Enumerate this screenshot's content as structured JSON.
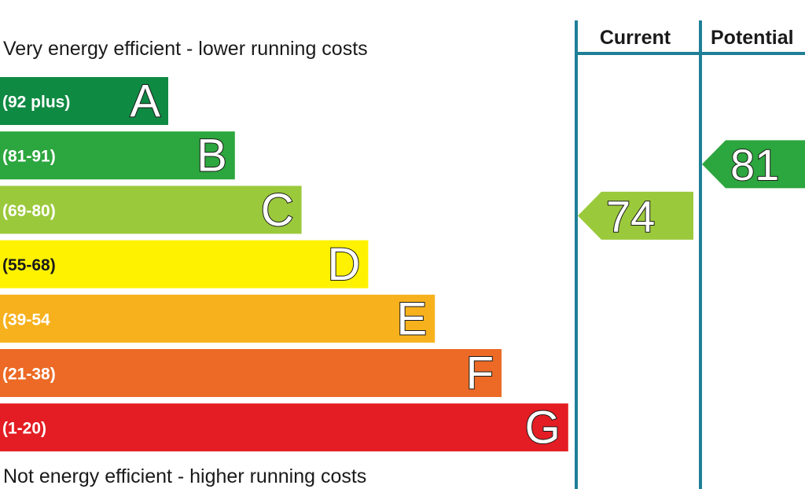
{
  "chart_data": {
    "type": "bar",
    "top_caption": "Very energy efficient - lower running costs",
    "bottom_caption": "Not energy efficient - higher running costs",
    "bands": [
      {
        "letter": "A",
        "range": "(92 plus)",
        "min": 92,
        "max": 100,
        "color": "#0f8a43"
      },
      {
        "letter": "B",
        "range": "(81-91)",
        "min": 81,
        "max": 91,
        "color": "#2ca63e"
      },
      {
        "letter": "C",
        "range": "(69-80)",
        "min": 69,
        "max": 80,
        "color": "#9bc93c"
      },
      {
        "letter": "D",
        "range": "(55-68)",
        "min": 55,
        "max": 68,
        "color": "#fff200"
      },
      {
        "letter": "E",
        "range": "(39-54",
        "min": 39,
        "max": 54,
        "color": "#f7b11d"
      },
      {
        "letter": "F",
        "range": "(21-38)",
        "min": 21,
        "max": 38,
        "color": "#ec6a26"
      },
      {
        "letter": "G",
        "range": "(1-20)",
        "min": 1,
        "max": 20,
        "color": "#e31d23"
      }
    ],
    "columns": [
      {
        "header": "Current",
        "value": "74",
        "band": "C",
        "color": "#9bc93c"
      },
      {
        "header": "Potential",
        "value": "81",
        "band": "B",
        "color": "#2ca63e"
      }
    ],
    "line_color": "#1f7f97"
  }
}
